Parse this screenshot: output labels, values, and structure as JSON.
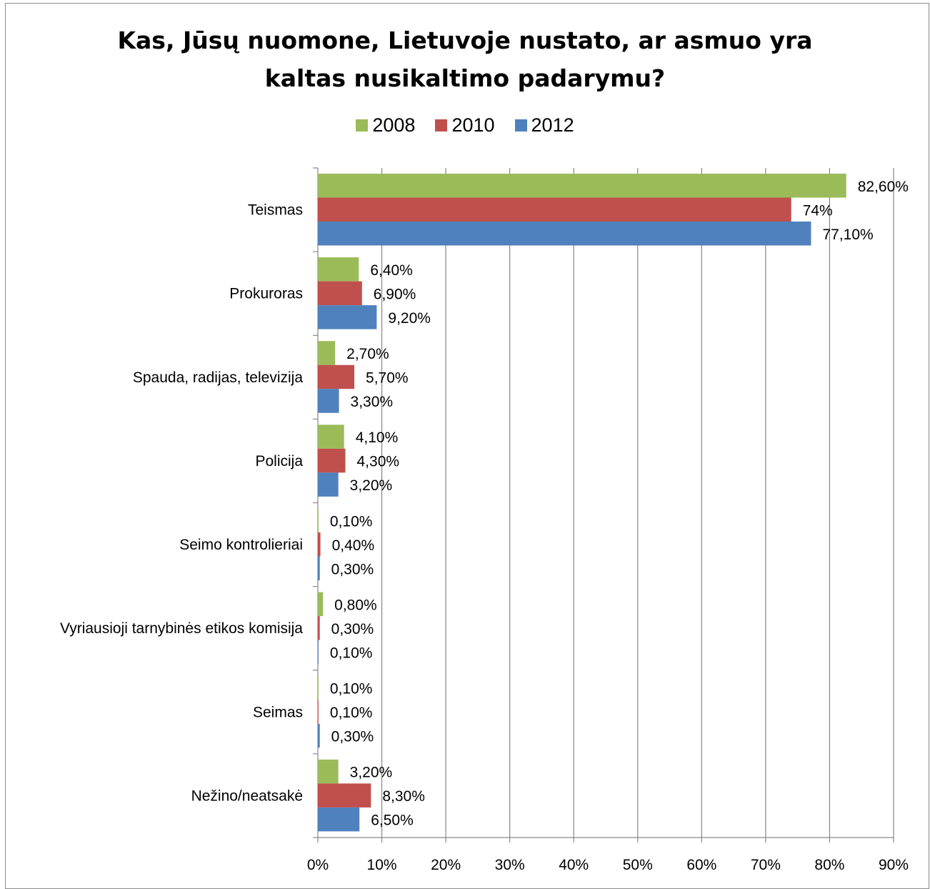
{
  "chart_data": {
    "type": "bar",
    "orientation": "horizontal",
    "title": "Kas, Jūsų nuomone, Lietuvoje nustato, ar asmuo yra kaltas nusikaltimo padarymu?",
    "title_lines": [
      "Kas, Jūsų nuomone, Lietuvoje nustato, ar asmuo yra",
      "kaltas nusikaltimo padarymu?"
    ],
    "categories": [
      "Teismas",
      "Prokuroras",
      "Spauda, radijas, televizija",
      "Policija",
      "Seimo kontrolieriai",
      "Vyriausioji tarnybinės etikos komisija",
      "Seimas",
      "Nežino/neatsakė"
    ],
    "series": [
      {
        "name": "2008",
        "color": "#9bbb59",
        "values": [
          82.6,
          6.4,
          2.7,
          4.1,
          0.1,
          0.8,
          0.1,
          3.2
        ],
        "labels": [
          "82,60%",
          "6,40%",
          "2,70%",
          "4,10%",
          "0,10%",
          "0,80%",
          "0,10%",
          "3,20%"
        ]
      },
      {
        "name": "2010",
        "color": "#c0504d",
        "values": [
          74,
          6.9,
          5.7,
          4.3,
          0.4,
          0.3,
          0.1,
          8.3
        ],
        "labels": [
          "74%",
          "6,90%",
          "5,70%",
          "4,30%",
          "0,40%",
          "0,30%",
          "0,10%",
          "8,30%"
        ]
      },
      {
        "name": "2012",
        "color": "#4f81bd",
        "values": [
          77.1,
          9.2,
          3.3,
          3.2,
          0.3,
          0.1,
          0.3,
          6.5
        ],
        "labels": [
          "77,10%",
          "9,20%",
          "3,30%",
          "3,20%",
          "0,30%",
          "0,10%",
          "0,30%",
          "6,50%"
        ]
      }
    ],
    "xlim": [
      0,
      90
    ],
    "xticks": [
      0,
      10,
      20,
      30,
      40,
      50,
      60,
      70,
      80,
      90
    ],
    "xtick_labels": [
      "0%",
      "10%",
      "20%",
      "30%",
      "40%",
      "50%",
      "60%",
      "70%",
      "80%",
      "90%"
    ],
    "grid": "vertical",
    "legend_position": "top-center",
    "gridline_color": "#868686"
  }
}
